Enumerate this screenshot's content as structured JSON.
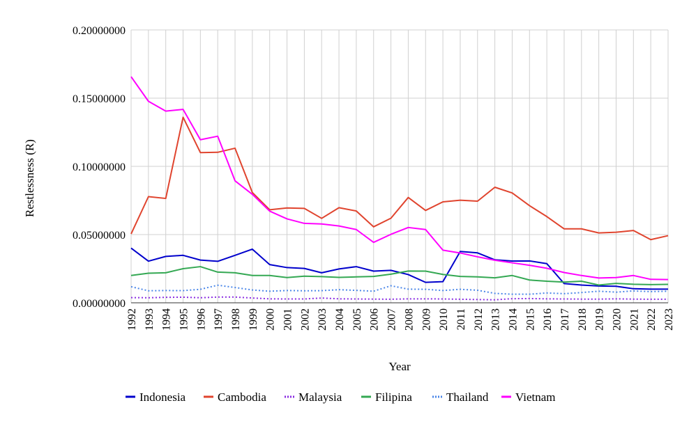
{
  "chart_data": {
    "type": "line",
    "xlabel": "Year",
    "ylabel": "Restlessness (R)",
    "ylim": [
      0,
      0.2
    ],
    "yticks": [
      "0.00000000",
      "0.05000000",
      "0.10000000",
      "0.15000000",
      "0.20000000"
    ],
    "ytick_values": [
      0,
      0.05,
      0.1,
      0.15,
      0.2
    ],
    "categories": [
      "1992",
      "1993",
      "1994",
      "1995",
      "1996",
      "1997",
      "1998",
      "1999",
      "2000",
      "2001",
      "2002",
      "2003",
      "2004",
      "2005",
      "2006",
      "2007",
      "2008",
      "2009",
      "2010",
      "2011",
      "2012",
      "2013",
      "2014",
      "2015",
      "2016",
      "2017",
      "2018",
      "2019",
      "2020",
      "2021",
      "2022",
      "2023"
    ],
    "grid": true,
    "legend_position": "bottom",
    "series": [
      {
        "name": "Indonesia",
        "color": "#0000cc",
        "dash": "solid",
        "values": [
          0.0401,
          0.0305,
          0.034,
          0.0348,
          0.0313,
          0.0304,
          0.0348,
          0.0393,
          0.028,
          0.0258,
          0.0252,
          0.022,
          0.0248,
          0.0265,
          0.0232,
          0.0238,
          0.0207,
          0.015,
          0.0155,
          0.0376,
          0.0366,
          0.0315,
          0.0306,
          0.0307,
          0.0287,
          0.0141,
          0.013,
          0.0123,
          0.0121,
          0.0103,
          0.01,
          0.01
        ]
      },
      {
        "name": "Cambodia",
        "color": "#e0442e",
        "dash": "solid",
        "values": [
          0.0505,
          0.0778,
          0.0765,
          0.136,
          0.1101,
          0.1103,
          0.1133,
          0.0808,
          0.0682,
          0.0695,
          0.0692,
          0.0619,
          0.0697,
          0.0673,
          0.0557,
          0.062,
          0.0772,
          0.0677,
          0.074,
          0.0752,
          0.0745,
          0.0847,
          0.0805,
          0.0712,
          0.0632,
          0.0542,
          0.0542,
          0.0512,
          0.0517,
          0.053,
          0.0463,
          0.0492
        ]
      },
      {
        "name": "Malaysia",
        "color": "#8a2be2",
        "dash": "dotted",
        "values": [
          0.0038,
          0.0037,
          0.004,
          0.0041,
          0.0037,
          0.0042,
          0.0042,
          0.0035,
          0.0029,
          0.0028,
          0.0028,
          0.0035,
          0.0029,
          0.0028,
          0.0027,
          0.0026,
          0.0029,
          0.0029,
          0.0028,
          0.0026,
          0.0024,
          0.0022,
          0.003,
          0.0031,
          0.0029,
          0.0028,
          0.0027,
          0.0027,
          0.0029,
          0.0027,
          0.0026,
          0.0026
        ]
      },
      {
        "name": "Filipina",
        "color": "#34a853",
        "dash": "solid",
        "values": [
          0.02,
          0.0217,
          0.022,
          0.025,
          0.0265,
          0.0225,
          0.022,
          0.02,
          0.02,
          0.0185,
          0.0195,
          0.0192,
          0.0186,
          0.019,
          0.0193,
          0.021,
          0.0233,
          0.0232,
          0.0208,
          0.0193,
          0.019,
          0.0183,
          0.02,
          0.0167,
          0.0158,
          0.0152,
          0.0158,
          0.013,
          0.0142,
          0.0136,
          0.0133,
          0.0135
        ]
      },
      {
        "name": "Thailand",
        "color": "#4a86e8",
        "dash": "dotted",
        "values": [
          0.0118,
          0.0088,
          0.009,
          0.0089,
          0.0099,
          0.0129,
          0.0112,
          0.0094,
          0.0085,
          0.009,
          0.0088,
          0.0089,
          0.0096,
          0.0091,
          0.0085,
          0.0125,
          0.01,
          0.0099,
          0.009,
          0.0099,
          0.0092,
          0.0069,
          0.0063,
          0.0063,
          0.0072,
          0.0067,
          0.0075,
          0.0085,
          0.0078,
          0.0087,
          0.0082,
          0.0085
        ]
      },
      {
        "name": "Vietnam",
        "color": "#ff00ff",
        "dash": "solid",
        "values": [
          0.1657,
          0.1477,
          0.1405,
          0.1418,
          0.1195,
          0.1221,
          0.0894,
          0.0795,
          0.0672,
          0.0615,
          0.0582,
          0.0578,
          0.0563,
          0.0537,
          0.0443,
          0.0502,
          0.0552,
          0.0537,
          0.0386,
          0.0365,
          0.0337,
          0.0312,
          0.0293,
          0.0275,
          0.0253,
          0.0222,
          0.02,
          0.0182,
          0.0185,
          0.02,
          0.0172,
          0.017
        ]
      }
    ]
  }
}
